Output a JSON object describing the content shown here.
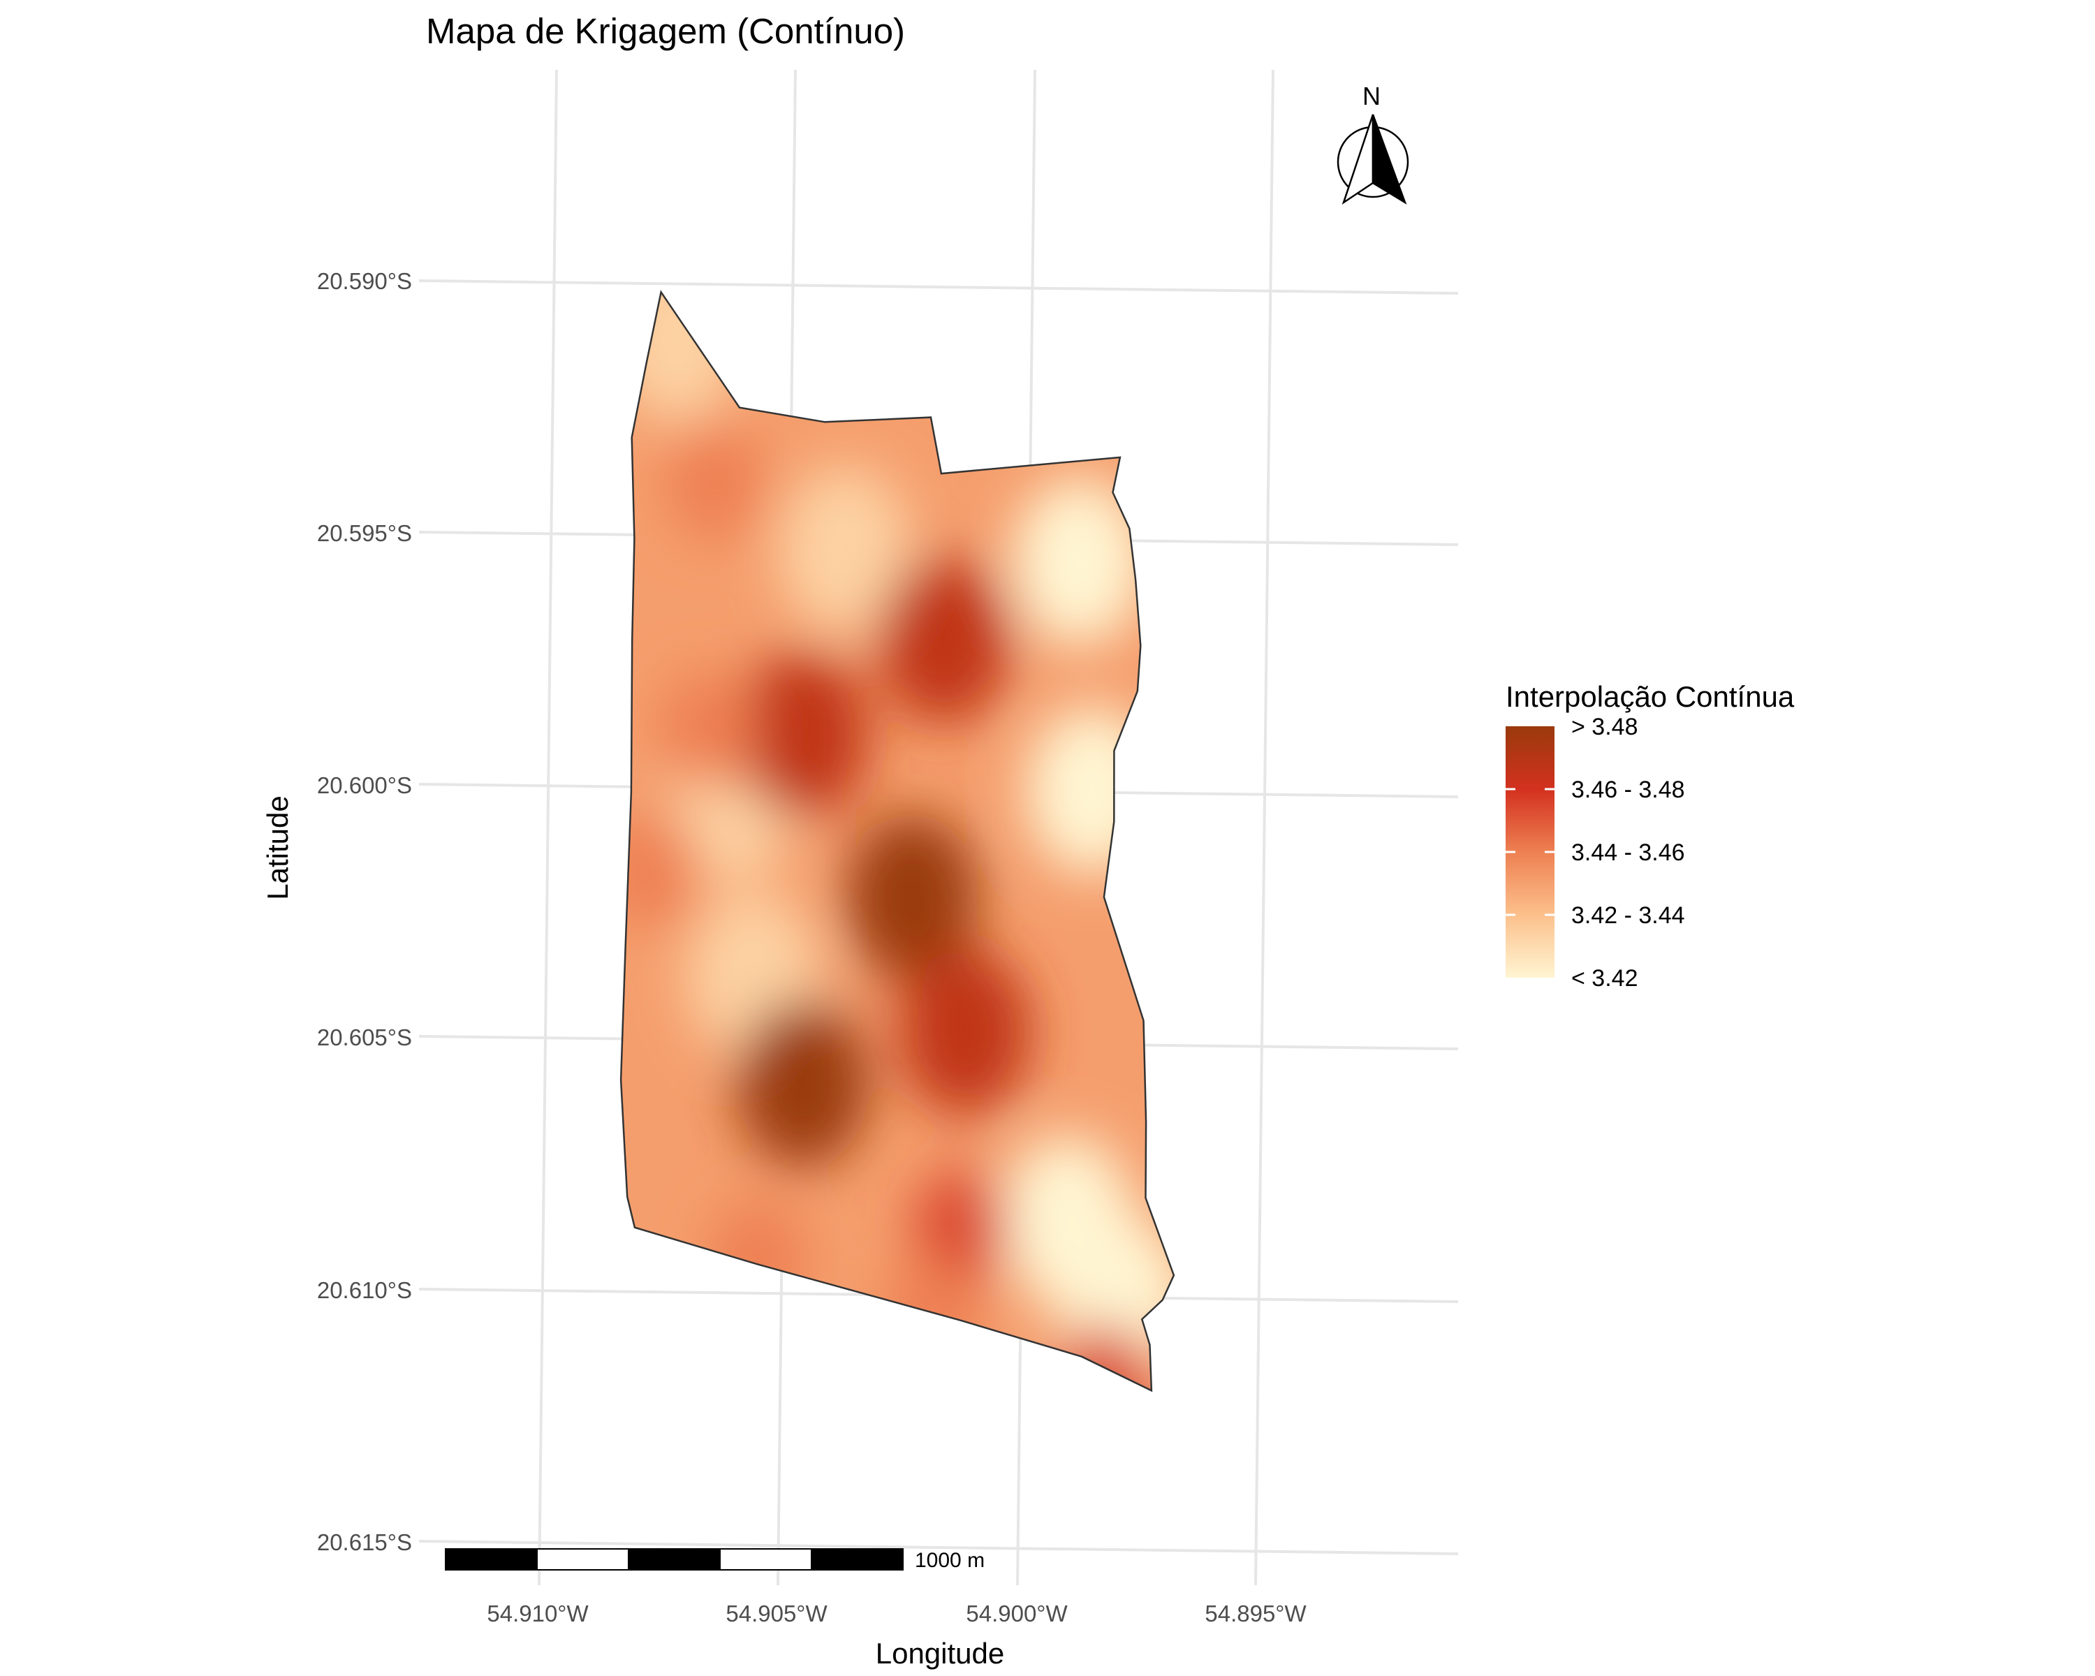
{
  "title": "Mapa de Krigagem (Contínuo)",
  "axes": {
    "x_title": "Longitude",
    "y_title": "Latitude",
    "x_ticks": [
      "54.910°W",
      "54.905°W",
      "54.900°W",
      "54.895°W"
    ],
    "y_ticks": [
      "20.590°S",
      "20.595°S",
      "20.600°S",
      "20.605°S",
      "20.610°S",
      "20.615°S"
    ]
  },
  "legend": {
    "title": "Interpolação Contínua",
    "labels": [
      "> 3.48",
      "3.46 - 3.48",
      "3.44 - 3.46",
      "3.42 - 3.44",
      "< 3.42"
    ],
    "colors": [
      "#9a3a0c",
      "#d3311f",
      "#ee8052",
      "#fcc08c",
      "#fff5d2"
    ]
  },
  "scale_bar": {
    "label": "1000 m"
  },
  "north_arrow": {
    "label": "N"
  },
  "chart_data": {
    "type": "heatmap",
    "title": "Mapa de Krigagem (Contínuo)",
    "xlabel": "Longitude",
    "ylabel": "Latitude",
    "x_unit": "°W",
    "y_unit": "°S",
    "xlim": [
      54.9118,
      54.8931
    ],
    "ylim": [
      20.5863,
      20.6155
    ],
    "grid": true,
    "legend_position": "right",
    "value_range": [
      3.42,
      3.48
    ],
    "boundary": [
      [
        54.9074,
        20.5901
      ],
      [
        54.9056,
        20.5923
      ],
      [
        54.9038,
        20.5925
      ],
      [
        54.9016,
        20.5923
      ],
      [
        54.9013,
        20.5934
      ],
      [
        54.8976,
        20.5929
      ],
      [
        54.8977,
        20.5936
      ],
      [
        54.8973,
        20.5943
      ],
      [
        54.8971,
        20.5953
      ],
      [
        54.8969,
        20.5966
      ],
      [
        54.8969,
        20.5975
      ],
      [
        54.8973,
        20.5987
      ],
      [
        54.8972,
        20.6001
      ],
      [
        54.8973,
        20.6016
      ],
      [
        54.8963,
        20.604
      ],
      [
        54.8961,
        20.606
      ],
      [
        54.896,
        20.6075
      ],
      [
        54.8953,
        20.609
      ],
      [
        54.8955,
        20.6095
      ],
      [
        54.8959,
        20.6099
      ],
      [
        54.8957,
        20.6104
      ],
      [
        54.8956,
        20.6113
      ],
      [
        54.8971,
        20.6107
      ],
      [
        54.8997,
        20.6101
      ],
      [
        54.904,
        20.6092
      ],
      [
        54.9066,
        20.6086
      ],
      [
        54.9068,
        20.608
      ],
      [
        54.9071,
        20.6057
      ],
      [
        54.9072,
        20.603
      ],
      [
        54.9073,
        20.6
      ],
      [
        54.9075,
        20.597
      ],
      [
        54.9076,
        20.595
      ],
      [
        54.9078,
        20.593
      ],
      [
        54.9076,
        20.5915
      ]
    ],
    "hotspots": [
      {
        "lon": 54.9033,
        "lat": 20.6056,
        "value": 3.49
      },
      {
        "lon": 54.9013,
        "lat": 20.6018,
        "value": 3.48
      },
      {
        "lon": 54.9,
        "lat": 20.6044,
        "value": 3.47
      },
      {
        "lon": 54.9038,
        "lat": 20.5987,
        "value": 3.47
      },
      {
        "lon": 54.901,
        "lat": 20.5967,
        "value": 3.47
      },
      {
        "lon": 54.8998,
        "lat": 20.6083,
        "value": 3.46
      },
      {
        "lon": 54.8966,
        "lat": 20.6112,
        "value": 3.46
      },
      {
        "lon": 54.906,
        "lat": 20.5938,
        "value": 3.45
      },
      {
        "lon": 54.9058,
        "lat": 20.5987,
        "value": 3.45
      },
      {
        "lon": 54.9068,
        "lat": 20.6015,
        "value": 3.45
      },
      {
        "lon": 54.904,
        "lat": 20.6091,
        "value": 3.45
      },
      {
        "lon": 54.9003,
        "lat": 20.6101,
        "value": 3.45
      }
    ],
    "coldspots": [
      {
        "lon": 54.8983,
        "lat": 20.595,
        "value": 3.41
      },
      {
        "lon": 54.8977,
        "lat": 20.5995,
        "value": 3.42
      },
      {
        "lon": 54.8976,
        "lat": 20.608,
        "value": 3.42
      },
      {
        "lon": 54.8964,
        "lat": 20.6095,
        "value": 3.41
      },
      {
        "lon": 54.907,
        "lat": 20.591,
        "value": 3.43
      },
      {
        "lon": 54.9032,
        "lat": 20.595,
        "value": 3.43
      },
      {
        "lon": 54.9052,
        "lat": 20.6,
        "value": 3.43
      },
      {
        "lon": 54.9045,
        "lat": 20.6035,
        "value": 3.43
      }
    ]
  }
}
